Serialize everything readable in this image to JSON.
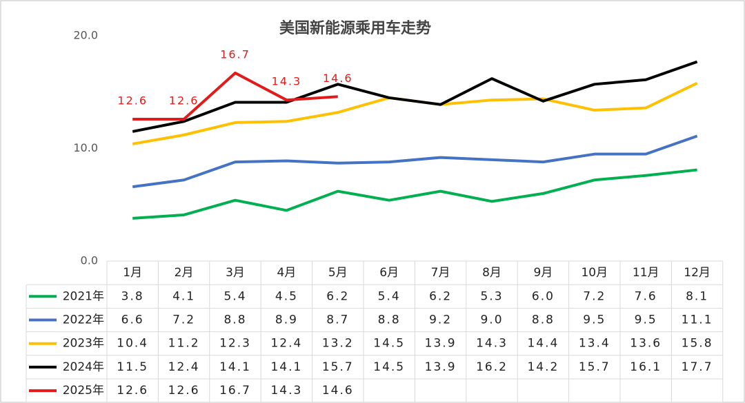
{
  "chart_data": {
    "type": "line",
    "title": "美国新能源乘用车走势",
    "categories": [
      "1月",
      "2月",
      "3月",
      "4月",
      "5月",
      "6月",
      "7月",
      "8月",
      "9月",
      "10月",
      "11月",
      "12月"
    ],
    "series": [
      {
        "name": "2021年",
        "color": "#00b050",
        "values": [
          3.8,
          4.1,
          5.4,
          4.5,
          6.2,
          5.4,
          6.2,
          5.3,
          6.0,
          7.2,
          7.6,
          8.1
        ],
        "value_labels": [
          "3.8",
          "4.1",
          "5.4",
          "4.5",
          "6.2",
          "5.4",
          "6.2",
          "5.3",
          "6.0",
          "7.2",
          "7.6",
          "8.1"
        ]
      },
      {
        "name": "2022年",
        "color": "#4472c4",
        "values": [
          6.6,
          7.2,
          8.8,
          8.9,
          8.7,
          8.8,
          9.2,
          9.0,
          8.8,
          9.5,
          9.5,
          11.1
        ],
        "value_labels": [
          "6.6",
          "7.2",
          "8.8",
          "8.9",
          "8.7",
          "8.8",
          "9.2",
          "9.0",
          "8.8",
          "9.5",
          "9.5",
          "11.1"
        ]
      },
      {
        "name": "2023年",
        "color": "#ffc000",
        "values": [
          10.4,
          11.2,
          12.3,
          12.4,
          13.2,
          14.5,
          13.9,
          14.3,
          14.4,
          13.4,
          13.6,
          15.8
        ]
      },
      {
        "name": "2024年",
        "color": "#000000",
        "values": [
          11.5,
          12.4,
          14.1,
          14.1,
          15.7,
          14.5,
          13.9,
          16.2,
          14.2,
          15.7,
          16.1,
          17.7
        ]
      },
      {
        "name": "2025年",
        "color": "#e31a1a",
        "values": [
          12.6,
          12.6,
          16.7,
          14.3,
          14.6,
          null,
          null,
          null,
          null,
          null,
          null,
          null
        ],
        "data_labels": true
      }
    ],
    "ylim": [
      0,
      20
    ],
    "yticks": [
      {
        "value": 0,
        "label": "0.0"
      },
      {
        "value": 10,
        "label": "10.0"
      },
      {
        "value": 20,
        "label": "20.0"
      }
    ],
    "grid": false
  }
}
